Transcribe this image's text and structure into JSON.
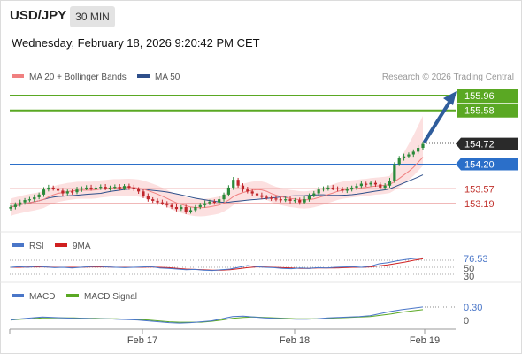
{
  "header": {
    "pair": "USD/JPY",
    "timeframe": "30 MIN",
    "datetime": "Wednesday, February 18, 2026 9:20:42 PM CET"
  },
  "legend": {
    "ma20_label": "MA 20 + Bollinger Bands",
    "ma50_label": "MA 50",
    "credit": "Research © 2026 Trading Central",
    "ma20_color": "#f08080",
    "ma50_color": "#2e4f8a"
  },
  "colors": {
    "target": "#5aa823",
    "pivot": "#2b6fc9",
    "support": "#e07070",
    "current": "#2a2a2a",
    "arrow": "#2f5d9c",
    "bull": "#2a8a3a",
    "bear": "#c0262b",
    "rsi": "#4a76c8",
    "rsi_ma": "#d02020",
    "macd": "#4a76c8",
    "macd_signal": "#5aa823"
  },
  "levels": [
    {
      "value": 155.96,
      "label": "155.96",
      "kind": "target"
    },
    {
      "value": 155.58,
      "label": "155.58",
      "kind": "target"
    },
    {
      "value": 154.72,
      "label": "154.72",
      "kind": "current"
    },
    {
      "value": 154.2,
      "label": "154.20",
      "kind": "pivot"
    },
    {
      "value": 153.57,
      "label": "153.57",
      "kind": "support"
    },
    {
      "value": 153.19,
      "label": "153.19",
      "kind": "support"
    }
  ],
  "rsi_panel": {
    "rsi_label": "RSI",
    "ma_label": "9MA",
    "value_label": "76.53",
    "level_70": "70",
    "level_50": "50",
    "level_30": "30"
  },
  "macd_panel": {
    "macd_label": "MACD",
    "signal_label": "MACD Signal",
    "value_label": "0.30",
    "zero_label": "0"
  },
  "x_axis": {
    "ticks": [
      "Feb 17",
      "Feb 18",
      "Feb 19"
    ]
  },
  "chart_data": {
    "type": "candlestick",
    "ylim": [
      152.95,
      156.25
    ],
    "close": [
      153.1,
      153.16,
      153.22,
      153.28,
      153.3,
      153.35,
      153.42,
      153.55,
      153.6,
      153.58,
      153.52,
      153.45,
      153.5,
      153.48,
      153.55,
      153.58,
      153.6,
      153.58,
      153.6,
      153.62,
      153.58,
      153.6,
      153.62,
      153.58,
      153.64,
      153.6,
      153.56,
      153.5,
      153.38,
      153.3,
      153.26,
      153.22,
      153.2,
      153.15,
      153.1,
      153.05,
      153.1,
      152.98,
      153.02,
      153.1,
      153.15,
      153.2,
      153.24,
      153.22,
      153.3,
      153.42,
      153.6,
      153.8,
      153.65,
      153.55,
      153.5,
      153.45,
      153.4,
      153.36,
      153.34,
      153.32,
      153.3,
      153.28,
      153.3,
      153.26,
      153.28,
      153.22,
      153.3,
      153.4,
      153.45,
      153.55,
      153.58,
      153.6,
      153.58,
      153.56,
      153.52,
      153.55,
      153.6,
      153.64,
      153.7,
      153.68,
      153.72,
      153.68,
      153.6,
      153.65,
      153.78,
      154.2,
      154.35,
      154.4,
      154.45,
      154.52,
      154.62,
      154.72
    ],
    "rsi": {
      "ylim": [
        20,
        85
      ],
      "values": [
        50,
        52,
        50,
        53,
        51,
        49,
        50,
        48,
        50,
        52,
        53,
        51,
        50,
        49,
        50,
        51,
        52,
        48,
        47,
        45,
        43,
        44,
        42,
        41,
        43,
        45,
        50,
        55,
        52,
        50,
        49,
        47,
        46,
        48,
        47,
        49,
        48,
        50,
        51,
        52,
        50,
        53,
        60,
        63,
        68,
        72,
        75,
        76.53
      ],
      "ma": [
        50,
        50,
        51,
        51,
        51,
        50,
        50,
        50,
        50,
        51,
        51,
        51,
        50,
        50,
        50,
        50,
        51,
        50,
        49,
        47,
        45,
        44,
        43,
        42,
        42,
        43,
        46,
        49,
        51,
        51,
        50,
        49,
        48,
        47,
        47,
        48,
        48,
        48,
        49,
        50,
        50,
        51,
        54,
        57,
        61,
        65,
        70,
        74
      ]
    },
    "macd": {
      "ylim": [
        -0.15,
        0.4
      ],
      "values": [
        0.0,
        0.03,
        0.05,
        0.07,
        0.06,
        0.05,
        0.04,
        0.04,
        0.03,
        0.03,
        0.02,
        0.01,
        0.0,
        -0.02,
        -0.04,
        -0.06,
        -0.07,
        -0.06,
        -0.04,
        -0.02,
        0.03,
        0.08,
        0.09,
        0.07,
        0.05,
        0.04,
        0.03,
        0.02,
        0.02,
        0.03,
        0.05,
        0.06,
        0.07,
        0.08,
        0.1,
        0.15,
        0.2,
        0.24,
        0.27,
        0.3
      ],
      "signal": [
        0.0,
        0.02,
        0.03,
        0.05,
        0.05,
        0.05,
        0.05,
        0.04,
        0.04,
        0.03,
        0.03,
        0.02,
        0.01,
        0.0,
        -0.02,
        -0.04,
        -0.05,
        -0.05,
        -0.05,
        -0.03,
        0.0,
        0.04,
        0.06,
        0.07,
        0.06,
        0.05,
        0.04,
        0.03,
        0.03,
        0.03,
        0.04,
        0.05,
        0.06,
        0.07,
        0.08,
        0.11,
        0.14,
        0.18,
        0.21,
        0.24
      ]
    }
  }
}
